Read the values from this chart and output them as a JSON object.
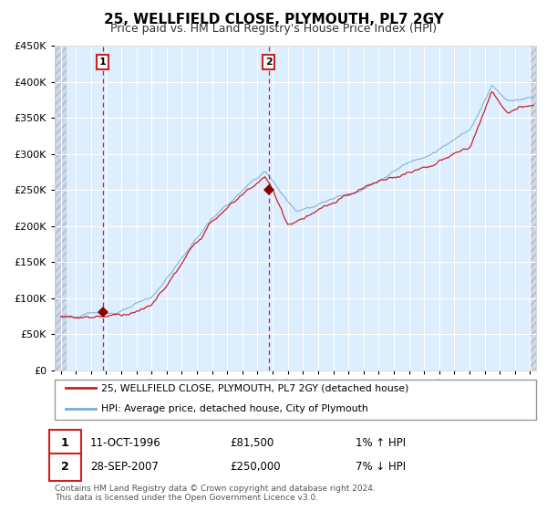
{
  "title": "25, WELLFIELD CLOSE, PLYMOUTH, PL7 2GY",
  "subtitle": "Price paid vs. HM Land Registry's House Price Index (HPI)",
  "legend_line1": "25, WELLFIELD CLOSE, PLYMOUTH, PL7 2GY (detached house)",
  "legend_line2": "HPI: Average price, detached house, City of Plymouth",
  "annotation1_label": "1",
  "annotation1_date": "11-OCT-1996",
  "annotation1_price": "£81,500",
  "annotation1_hpi": "1% ↑ HPI",
  "annotation2_label": "2",
  "annotation2_date": "28-SEP-2007",
  "annotation2_price": "£250,000",
  "annotation2_hpi": "7% ↓ HPI",
  "footer": "Contains HM Land Registry data © Crown copyright and database right 2024.\nThis data is licensed under the Open Government Licence v3.0.",
  "hpi_color": "#7aadd4",
  "price_color": "#cc2222",
  "dot_color": "#880000",
  "bg_color": "#ddeeff",
  "vline_color": "#cc2222",
  "ylim": [
    0,
    450000
  ],
  "yticks": [
    0,
    50000,
    100000,
    150000,
    200000,
    250000,
    300000,
    350000,
    400000,
    450000
  ],
  "sale1_year": 1996.78,
  "sale1_value": 81500,
  "sale2_year": 2007.74,
  "sale2_value": 250000,
  "xmin": 1994,
  "xmax": 2025
}
